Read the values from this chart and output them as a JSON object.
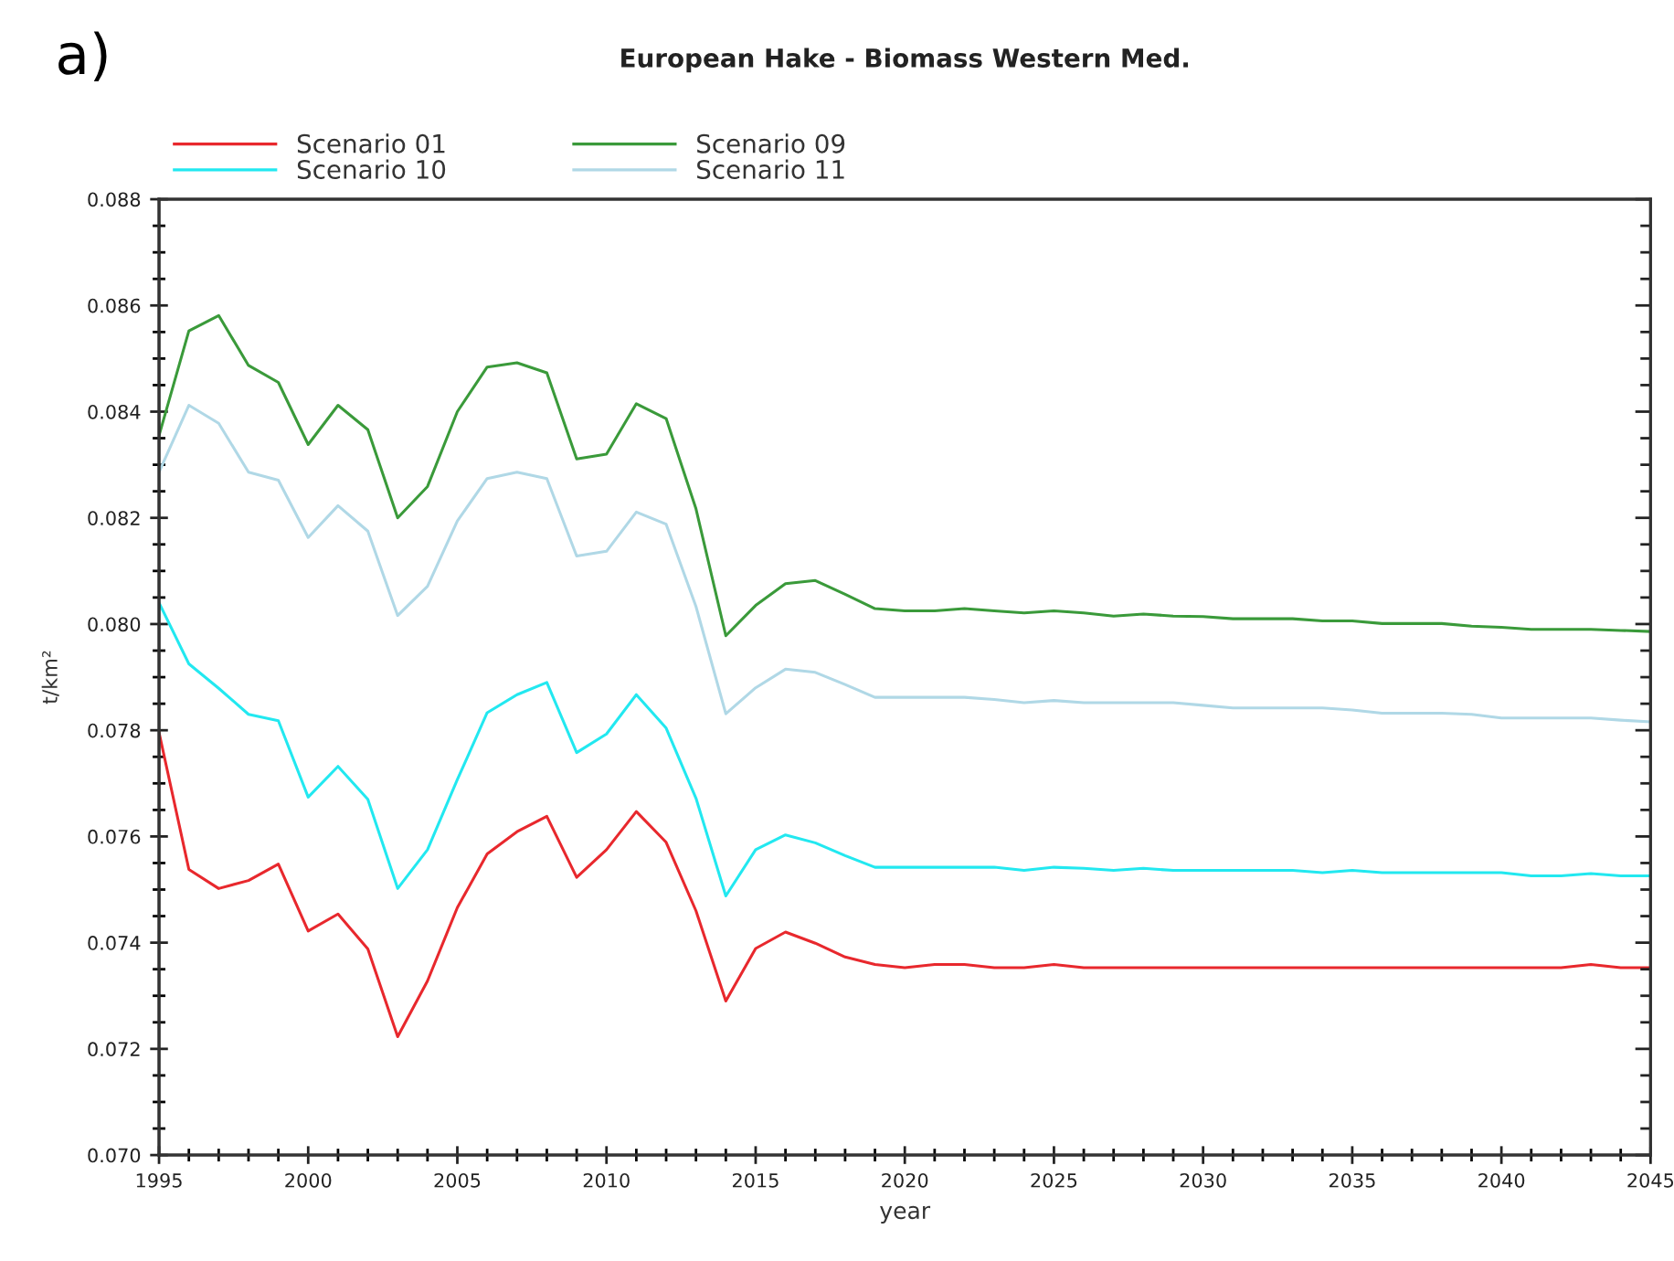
{
  "chart_data": {
    "type": "line",
    "title": "European Hake - Biomass Western Med.",
    "xlabel": "year",
    "ylabel": "t/km²",
    "annotations": [
      "a)"
    ],
    "xlim": [
      1995,
      2045
    ],
    "ylim": [
      0.07,
      0.088
    ],
    "xticks": [
      1995,
      {
        "value": 1996,
        "label": null
      },
      {
        "value": 1997,
        "label": null
      },
      {
        "value": 1998,
        "label": null
      },
      {
        "value": 1999,
        "label": null
      },
      2000,
      {
        "value": 2001,
        "label": null
      },
      {
        "value": 2002,
        "label": null
      },
      {
        "value": 2003,
        "label": null
      },
      {
        "value": 2004,
        "label": null
      },
      2005,
      {
        "value": 2006,
        "label": null
      },
      {
        "value": 2007,
        "label": null
      },
      {
        "value": 2008,
        "label": null
      },
      {
        "value": 2009,
        "label": null
      },
      2010,
      {
        "value": 2011,
        "label": null
      },
      {
        "value": 2012,
        "label": null
      },
      {
        "value": 2013,
        "label": null
      },
      {
        "value": 2014,
        "label": null
      },
      2015,
      {
        "value": 2016,
        "label": null
      },
      {
        "value": 2017,
        "label": null
      },
      {
        "value": 2018,
        "label": null
      },
      {
        "value": 2019,
        "label": null
      },
      2020,
      {
        "value": 2021,
        "label": null
      },
      {
        "value": 2022,
        "label": null
      },
      {
        "value": 2023,
        "label": null
      },
      {
        "value": 2024,
        "label": null
      },
      2025,
      {
        "value": 2026,
        "label": null
      },
      {
        "value": 2027,
        "label": null
      },
      {
        "value": 2028,
        "label": null
      },
      {
        "value": 2029,
        "label": null
      },
      2030,
      {
        "value": 2031,
        "label": null
      },
      {
        "value": 2032,
        "label": null
      },
      {
        "value": 2033,
        "label": null
      },
      {
        "value": 2034,
        "label": null
      },
      2035,
      {
        "value": 2036,
        "label": null
      },
      {
        "value": 2037,
        "label": null
      },
      {
        "value": 2038,
        "label": null
      },
      {
        "value": 2039,
        "label": null
      },
      2040,
      {
        "value": 2041,
        "label": null
      },
      {
        "value": 2042,
        "label": null
      },
      {
        "value": 2043,
        "label": null
      },
      {
        "value": 2044,
        "label": null
      },
      2045
    ],
    "yticks": [
      {
        "value": 0.07,
        "label": "0.070"
      },
      {
        "value": 0.0705,
        "label": null
      },
      {
        "value": 0.071,
        "label": null
      },
      {
        "value": 0.0715,
        "label": null
      },
      {
        "value": 0.072,
        "label": "0.072"
      },
      {
        "value": 0.0725,
        "label": null
      },
      {
        "value": 0.073,
        "label": null
      },
      {
        "value": 0.0735,
        "label": null
      },
      {
        "value": 0.074,
        "label": "0.074"
      },
      {
        "value": 0.0745,
        "label": null
      },
      {
        "value": 0.075,
        "label": null
      },
      {
        "value": 0.0755,
        "label": null
      },
      {
        "value": 0.076,
        "label": "0.076"
      },
      {
        "value": 0.0765,
        "label": null
      },
      {
        "value": 0.077,
        "label": null
      },
      {
        "value": 0.0775,
        "label": null
      },
      {
        "value": 0.078,
        "label": "0.078"
      },
      {
        "value": 0.0785,
        "label": null
      },
      {
        "value": 0.079,
        "label": null
      },
      {
        "value": 0.0795,
        "label": null
      },
      {
        "value": 0.08,
        "label": "0.080"
      },
      {
        "value": 0.0805,
        "label": null
      },
      {
        "value": 0.081,
        "label": null
      },
      {
        "value": 0.0815,
        "label": null
      },
      {
        "value": 0.082,
        "label": "0.082"
      },
      {
        "value": 0.0825,
        "label": null
      },
      {
        "value": 0.083,
        "label": null
      },
      {
        "value": 0.0835,
        "label": null
      },
      {
        "value": 0.084,
        "label": "0.084"
      },
      {
        "value": 0.0845,
        "label": null
      },
      {
        "value": 0.085,
        "label": null
      },
      {
        "value": 0.0855,
        "label": null
      },
      {
        "value": 0.086,
        "label": "0.086"
      },
      {
        "value": 0.0865,
        "label": null
      },
      {
        "value": 0.087,
        "label": null
      },
      {
        "value": 0.0875,
        "label": null
      },
      {
        "value": 0.088,
        "label": "0.088"
      }
    ],
    "grid": false,
    "legend": "top left",
    "marker": "none",
    "line_style": "solid",
    "x": [
      1995,
      1996,
      1997,
      1998,
      1999,
      2000,
      2001,
      2002,
      2003,
      2004,
      2005,
      2006,
      2007,
      2008,
      2009,
      2010,
      2011,
      2012,
      2013,
      2014,
      2015,
      2016,
      2017,
      2018,
      2019,
      2020,
      2021,
      2022,
      2023,
      2024,
      2025,
      2026,
      2027,
      2028,
      2029,
      2030,
      2031,
      2032,
      2033,
      2034,
      2035,
      2036,
      2037,
      2038,
      2039,
      2040,
      2041,
      2042,
      2043,
      2044,
      2045
    ],
    "series": [
      {
        "name": "Scenario 01",
        "color": "#e8282d",
        "values": [
          0.07796,
          0.07538,
          0.07502,
          0.07517,
          0.07548,
          0.07422,
          0.07454,
          0.07388,
          0.07223,
          0.07328,
          0.07466,
          0.07567,
          0.07609,
          0.07638,
          0.07523,
          0.07575,
          0.07647,
          0.07589,
          0.0746,
          0.0729,
          0.07389,
          0.0742,
          0.07399,
          0.07373,
          0.07359,
          0.07353,
          0.07359,
          0.07359,
          0.07353,
          0.07353,
          0.07359,
          0.07353,
          0.07353,
          0.07353,
          0.07353,
          0.07353,
          0.07353,
          0.07353,
          0.07353,
          0.07353,
          0.07353,
          0.07353,
          0.07353,
          0.07353,
          0.07353,
          0.07353,
          0.07353,
          0.07353,
          0.07359,
          0.07353,
          0.07353
        ]
      },
      {
        "name": "Scenario 10",
        "color": "#22e8f0",
        "values": [
          0.0804,
          0.07925,
          0.07879,
          0.0783,
          0.07818,
          0.07674,
          0.07732,
          0.0767,
          0.07502,
          0.07575,
          0.07707,
          0.07833,
          0.07867,
          0.0789,
          0.07758,
          0.07793,
          0.07867,
          0.07804,
          0.07672,
          0.07488,
          0.07575,
          0.07603,
          0.07588,
          0.07564,
          0.07542,
          0.07542,
          0.07542,
          0.07542,
          0.07542,
          0.07536,
          0.07542,
          0.0754,
          0.07536,
          0.0754,
          0.07536,
          0.07536,
          0.07536,
          0.07536,
          0.07536,
          0.07532,
          0.07536,
          0.07532,
          0.07532,
          0.07532,
          0.07532,
          0.07532,
          0.07526,
          0.07526,
          0.0753,
          0.07526,
          0.07526
        ]
      },
      {
        "name": "Scenario 09",
        "color": "#3a9a3a",
        "values": [
          0.08355,
          0.08552,
          0.08581,
          0.08487,
          0.08455,
          0.08338,
          0.08412,
          0.08366,
          0.082,
          0.08259,
          0.084,
          0.08484,
          0.08492,
          0.08473,
          0.08311,
          0.0832,
          0.08415,
          0.08387,
          0.08217,
          0.07978,
          0.08035,
          0.08076,
          0.08082,
          0.08056,
          0.08029,
          0.08025,
          0.08025,
          0.08029,
          0.08025,
          0.08021,
          0.08025,
          0.08021,
          0.08015,
          0.08019,
          0.08015,
          0.08014,
          0.0801,
          0.0801,
          0.0801,
          0.08006,
          0.08006,
          0.08001,
          0.08001,
          0.08001,
          0.07996,
          0.07994,
          0.0799,
          0.0799,
          0.0799,
          0.07988,
          0.07986
        ]
      },
      {
        "name": "Scenario 11",
        "color": "#b0d8e6",
        "values": [
          0.08286,
          0.08412,
          0.08378,
          0.08286,
          0.08271,
          0.08163,
          0.08223,
          0.08175,
          0.08016,
          0.08071,
          0.08194,
          0.08274,
          0.08286,
          0.08274,
          0.08128,
          0.08137,
          0.08211,
          0.08188,
          0.08033,
          0.07831,
          0.0788,
          0.07915,
          0.07909,
          0.07886,
          0.07862,
          0.07862,
          0.07862,
          0.07862,
          0.07858,
          0.07852,
          0.07856,
          0.07852,
          0.07852,
          0.07852,
          0.07852,
          0.07847,
          0.07842,
          0.07842,
          0.07842,
          0.07842,
          0.07838,
          0.07832,
          0.07832,
          0.07832,
          0.0783,
          0.07823,
          0.07823,
          0.07823,
          0.07823,
          0.07819,
          0.07816
        ]
      }
    ]
  }
}
